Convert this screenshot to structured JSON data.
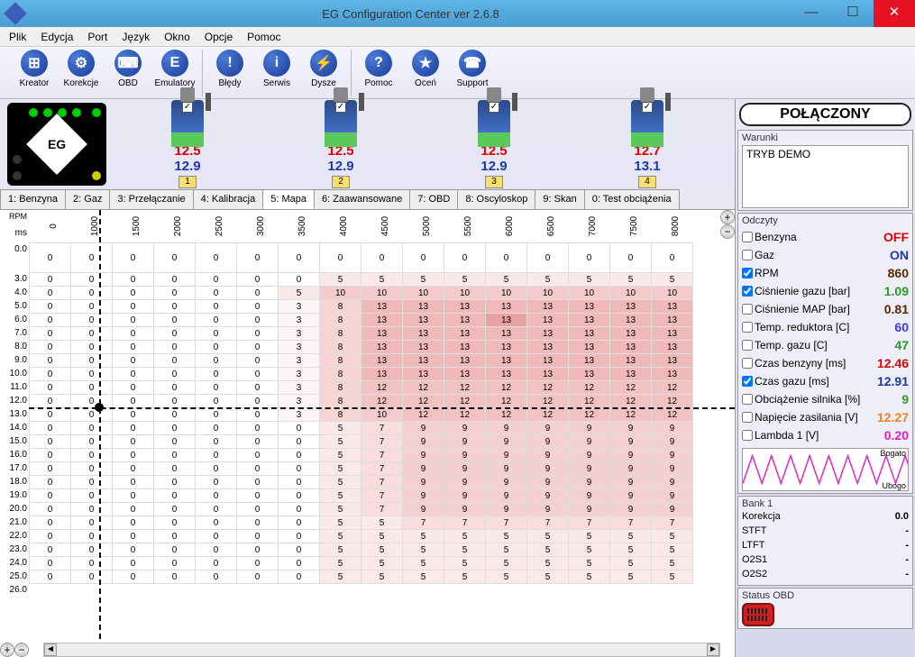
{
  "titlebar": {
    "title": "EG Configuration Center ver 2.6.8"
  },
  "menu": [
    "Plik",
    "Edycja",
    "Port",
    "Język",
    "Okno",
    "Opcje",
    "Pomoc"
  ],
  "toolbar_groups": [
    [
      {
        "l": "Kreator",
        "g": "⊞"
      },
      {
        "l": "Korekcje",
        "g": "⚙"
      },
      {
        "l": "OBD",
        "g": "⌨"
      },
      {
        "l": "Emulatory",
        "g": "E"
      }
    ],
    [
      {
        "l": "Błędy",
        "g": "!"
      },
      {
        "l": "Serwis",
        "g": "i"
      },
      {
        "l": "Dysze",
        "g": "⚡"
      }
    ],
    [
      {
        "l": "Pomoc",
        "g": "?"
      },
      {
        "l": "Oceń",
        "g": "★"
      },
      {
        "l": "Support",
        "g": "☎"
      }
    ]
  ],
  "injectors": [
    {
      "n": "1",
      "r": "12.5",
      "b": "12.9"
    },
    {
      "n": "2",
      "r": "12.5",
      "b": "12.9"
    },
    {
      "n": "3",
      "r": "12.5",
      "b": "12.9"
    },
    {
      "n": "4",
      "r": "12.7",
      "b": "13.1"
    }
  ],
  "tabs": [
    "1: Benzyna",
    "2: Gaz",
    "3: Przełączanie",
    "4: Kalibracja",
    "5: Mapa",
    "6: Zaawansowane",
    "7: OBD",
    "8: Oscyloskop",
    "9: Skan",
    "0: Test obciążenia"
  ],
  "tab_active": 4,
  "status": "POŁĄCZONY",
  "warnings": {
    "hdr": "Warunki",
    "text": "TRYB DEMO"
  },
  "readings_hdr": "Odczyty",
  "readings": [
    {
      "c": false,
      "l": "Benzyna",
      "v": "OFF",
      "col": "#e00000"
    },
    {
      "c": false,
      "l": "Gaz",
      "v": "ON",
      "col": "#1a3aa8"
    },
    {
      "c": true,
      "l": "RPM",
      "v": "860",
      "col": "#5a2a00"
    },
    {
      "c": true,
      "l": "Ciśnienie gazu [bar]",
      "v": "1.09",
      "col": "#2a9a2a"
    },
    {
      "c": false,
      "l": "Ciśnienie MAP [bar]",
      "v": "0.81",
      "col": "#5a2a00"
    },
    {
      "c": false,
      "l": "Temp. reduktora [C]",
      "v": "60",
      "col": "#3a3af0"
    },
    {
      "c": false,
      "l": "Temp. gazu [C]",
      "v": "47",
      "col": "#2a9a2a"
    },
    {
      "c": false,
      "l": "Czas benzyny [ms]",
      "v": "12.46",
      "col": "#e00000"
    },
    {
      "c": true,
      "l": "Czas gazu [ms]",
      "v": "12.91",
      "col": "#1a3aa8"
    },
    {
      "c": false,
      "l": "Obciążenie silnika [%]",
      "v": "9",
      "col": "#2a9a2a"
    },
    {
      "c": false,
      "l": "Napięcie zasilania [V]",
      "v": "12.27",
      "col": "#f08020"
    },
    {
      "c": false,
      "l": "Lambda 1 [V]",
      "v": "0.20",
      "col": "#e020c0"
    }
  ],
  "wave": {
    "bogato": "Bogato",
    "ubogo": "Ubogo",
    "color": "#e020c0"
  },
  "bank": {
    "hdr": "Bank 1",
    "rows": [
      [
        "Korekcja",
        "0.0"
      ],
      [
        "STFT",
        "-"
      ],
      [
        "LTFT",
        "-"
      ],
      [
        "O2S1",
        "-"
      ],
      [
        "O2S2",
        "-"
      ]
    ]
  },
  "obd_hdr": "Status OBD",
  "map": {
    "ms_label": "ms",
    "rpm_label": "RPM",
    "rpm": [
      0,
      1000,
      1500,
      2000,
      2500,
      3000,
      3500,
      4000,
      4500,
      5000,
      5500,
      6000,
      6500,
      7000,
      7500,
      8000
    ],
    "ms": [
      "0.0",
      "3.0",
      "4.0",
      "5.0",
      "6.0",
      "7.0",
      "8.0",
      "9.0",
      "10.0",
      "11.0",
      "12.0",
      "13.0",
      "14.0",
      "15.0",
      "16.0",
      "17.0",
      "18.0",
      "19.0",
      "20.0",
      "21.0",
      "22.0",
      "23.0",
      "24.0",
      "25.0",
      "26.0"
    ],
    "rows": [
      [
        0,
        0,
        0,
        0,
        0,
        0,
        0,
        0,
        0,
        0,
        0,
        0,
        0,
        0,
        0,
        0
      ],
      [
        0,
        0,
        0,
        0,
        0,
        0,
        0,
        5,
        5,
        5,
        5,
        5,
        5,
        5,
        5,
        5
      ],
      [
        0,
        0,
        0,
        0,
        0,
        0,
        5,
        10,
        10,
        10,
        10,
        10,
        10,
        10,
        10,
        10
      ],
      [
        0,
        0,
        0,
        0,
        0,
        0,
        3,
        8,
        13,
        13,
        13,
        13,
        13,
        13,
        13,
        13
      ],
      [
        0,
        0,
        0,
        0,
        0,
        0,
        3,
        8,
        13,
        13,
        13,
        13,
        13,
        13,
        13,
        13
      ],
      [
        0,
        0,
        0,
        0,
        0,
        0,
        3,
        8,
        13,
        13,
        13,
        13,
        13,
        13,
        13,
        13
      ],
      [
        0,
        0,
        0,
        0,
        0,
        0,
        3,
        8,
        13,
        13,
        13,
        13,
        13,
        13,
        13,
        13
      ],
      [
        0,
        0,
        0,
        0,
        0,
        0,
        3,
        8,
        13,
        13,
        13,
        13,
        13,
        13,
        13,
        13
      ],
      [
        0,
        0,
        0,
        0,
        0,
        0,
        3,
        8,
        13,
        13,
        13,
        13,
        13,
        13,
        13,
        13
      ],
      [
        0,
        0,
        0,
        0,
        0,
        0,
        3,
        8,
        12,
        12,
        12,
        12,
        12,
        12,
        12,
        12
      ],
      [
        0,
        0,
        0,
        0,
        0,
        0,
        3,
        8,
        12,
        12,
        12,
        12,
        12,
        12,
        12,
        12
      ],
      [
        0,
        0,
        0,
        0,
        0,
        0,
        3,
        8,
        10,
        12,
        12,
        12,
        12,
        12,
        12,
        12
      ],
      [
        0,
        0,
        0,
        0,
        0,
        0,
        0,
        5,
        7,
        9,
        9,
        9,
        9,
        9,
        9,
        9
      ],
      [
        0,
        0,
        0,
        0,
        0,
        0,
        0,
        5,
        7,
        9,
        9,
        9,
        9,
        9,
        9,
        9
      ],
      [
        0,
        0,
        0,
        0,
        0,
        0,
        0,
        5,
        7,
        9,
        9,
        9,
        9,
        9,
        9,
        9
      ],
      [
        0,
        0,
        0,
        0,
        0,
        0,
        0,
        5,
        7,
        9,
        9,
        9,
        9,
        9,
        9,
        9
      ],
      [
        0,
        0,
        0,
        0,
        0,
        0,
        0,
        5,
        7,
        9,
        9,
        9,
        9,
        9,
        9,
        9
      ],
      [
        0,
        0,
        0,
        0,
        0,
        0,
        0,
        5,
        7,
        9,
        9,
        9,
        9,
        9,
        9,
        9
      ],
      [
        0,
        0,
        0,
        0,
        0,
        0,
        0,
        5,
        7,
        9,
        9,
        9,
        9,
        9,
        9,
        9
      ],
      [
        0,
        0,
        0,
        0,
        0,
        0,
        0,
        5,
        5,
        7,
        7,
        7,
        7,
        7,
        7,
        7
      ],
      [
        0,
        0,
        0,
        0,
        0,
        0,
        0,
        5,
        5,
        5,
        5,
        5,
        5,
        5,
        5,
        5
      ],
      [
        0,
        0,
        0,
        0,
        0,
        0,
        0,
        5,
        5,
        5,
        5,
        5,
        5,
        5,
        5,
        5
      ],
      [
        0,
        0,
        0,
        0,
        0,
        0,
        0,
        5,
        5,
        5,
        5,
        5,
        5,
        5,
        5,
        5
      ],
      [
        0,
        0,
        0,
        0,
        0,
        0,
        0,
        5,
        5,
        5,
        5,
        5,
        5,
        5,
        5,
        5
      ]
    ],
    "first_row_height": 33,
    "color_scale": [
      {
        "t": 0,
        "c": "#ffffff"
      },
      {
        "t": 3,
        "c": "#fdf5f5"
      },
      {
        "t": 5,
        "c": "#fbe8e8"
      },
      {
        "t": 7,
        "c": "#f9dcdc"
      },
      {
        "t": 8,
        "c": "#f7d5d5"
      },
      {
        "t": 9,
        "c": "#f5d0d0"
      },
      {
        "t": 10,
        "c": "#f4caca"
      },
      {
        "t": 12,
        "c": "#f2c2c2"
      },
      {
        "t": 13,
        "c": "#f0b8b8"
      }
    ],
    "highlight": {
      "row": 4,
      "col": 11,
      "c": "#e8a0a0"
    },
    "crosshair": {
      "ms": 12.5,
      "rpm_col": 1.7
    }
  }
}
